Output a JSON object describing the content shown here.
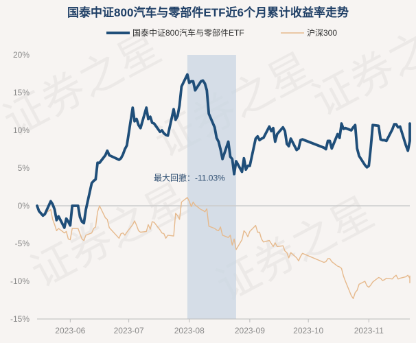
{
  "chart_data": {
    "type": "line",
    "title": "国泰中证800汽车与零部件ETF近6个月累计收益率走势",
    "watermark": "证券之星",
    "colors": {
      "etf": "#1f4e79",
      "index": "#e6b98c",
      "shade": "#c9d6e3",
      "axis": "#bbbbbb",
      "zero_line": "#cccccc"
    },
    "legend": {
      "placement": "top-center"
    },
    "grid": false,
    "x_range": [
      "2023-05-15",
      "2023-11-22"
    ],
    "x_tick_labels": [
      "2023-06",
      "2023-07",
      "2023-08",
      "2023-09",
      "2023-10",
      "2023-11"
    ],
    "x_tick_dates": [
      "2023-06-01",
      "2023-07-01",
      "2023-08-01",
      "2023-09-01",
      "2023-10-01",
      "2023-11-01"
    ],
    "ylim": [
      -15,
      20
    ],
    "y_ticks": [
      -15,
      -10,
      -5,
      0,
      5,
      10,
      15,
      20
    ],
    "y_tick_labels": [
      "-15%",
      "-10%",
      "-5%",
      "0%",
      "5%",
      "10%",
      "15%",
      "20%"
    ],
    "max_drawdown": {
      "label": "最大回撤：-11.03%",
      "start": "2023-07-31",
      "end": "2023-08-25"
    },
    "series": [
      {
        "key": "etf",
        "name": "国泰中证800汽车与零部件ETF",
        "points": [
          [
            "2023-05-15",
            0.0
          ],
          [
            "2023-05-16",
            -0.7
          ],
          [
            "2023-05-17",
            -1.0
          ],
          [
            "2023-05-18",
            -1.3
          ],
          [
            "2023-05-19",
            -1.1
          ],
          [
            "2023-05-22",
            0.6
          ],
          [
            "2023-05-23",
            0.2
          ],
          [
            "2023-05-24",
            -0.5
          ],
          [
            "2023-05-25",
            -1.9
          ],
          [
            "2023-05-26",
            -1.4
          ],
          [
            "2023-05-29",
            -2.9
          ],
          [
            "2023-05-30",
            -1.7
          ],
          [
            "2023-05-31",
            -2.1
          ],
          [
            "2023-06-01",
            -2.6
          ],
          [
            "2023-06-02",
            0.0
          ],
          [
            "2023-06-05",
            0.0
          ],
          [
            "2023-06-06",
            -1.5
          ],
          [
            "2023-06-07",
            -2.1
          ],
          [
            "2023-06-08",
            -2.3
          ],
          [
            "2023-06-09",
            -0.5
          ],
          [
            "2023-06-12",
            3.0
          ],
          [
            "2023-06-13",
            3.3
          ],
          [
            "2023-06-14",
            3.5
          ],
          [
            "2023-06-15",
            5.7
          ],
          [
            "2023-06-16",
            5.7
          ],
          [
            "2023-06-19",
            6.7
          ],
          [
            "2023-06-20",
            7.3
          ],
          [
            "2023-06-21",
            6.7
          ],
          [
            "2023-06-26",
            6.1
          ],
          [
            "2023-06-27",
            6.3
          ],
          [
            "2023-06-28",
            6.8
          ],
          [
            "2023-06-29",
            7.5
          ],
          [
            "2023-06-30",
            8.0
          ],
          [
            "2023-07-03",
            13.0
          ],
          [
            "2023-07-04",
            11.2
          ],
          [
            "2023-07-05",
            11.5
          ],
          [
            "2023-07-06",
            10.7
          ],
          [
            "2023-07-07",
            10.3
          ],
          [
            "2023-07-10",
            13.0
          ],
          [
            "2023-07-11",
            11.5
          ],
          [
            "2023-07-12",
            11.8
          ],
          [
            "2023-07-13",
            11.0
          ],
          [
            "2023-07-14",
            10.9
          ],
          [
            "2023-07-17",
            9.8
          ],
          [
            "2023-07-18",
            10.0
          ],
          [
            "2023-07-19",
            9.6
          ],
          [
            "2023-07-20",
            9.4
          ],
          [
            "2023-07-21",
            9.3
          ],
          [
            "2023-07-24",
            12.8
          ],
          [
            "2023-07-25",
            11.4
          ],
          [
            "2023-07-26",
            11.9
          ],
          [
            "2023-07-27",
            13.3
          ],
          [
            "2023-07-28",
            15.8
          ],
          [
            "2023-07-31",
            17.4
          ],
          [
            "2023-08-01",
            16.3
          ],
          [
            "2023-08-02",
            16.5
          ],
          [
            "2023-08-03",
            16.5
          ],
          [
            "2023-08-04",
            15.3
          ],
          [
            "2023-08-07",
            16.5
          ],
          [
            "2023-08-08",
            16.6
          ],
          [
            "2023-08-09",
            16.2
          ],
          [
            "2023-08-10",
            15.3
          ],
          [
            "2023-08-11",
            12.2
          ],
          [
            "2023-08-14",
            10.4
          ],
          [
            "2023-08-15",
            9.0
          ],
          [
            "2023-08-16",
            8.5
          ],
          [
            "2023-08-17",
            7.5
          ],
          [
            "2023-08-18",
            6.2
          ],
          [
            "2023-08-21",
            8.5
          ],
          [
            "2023-08-22",
            6.5
          ],
          [
            "2023-08-23",
            6.2
          ],
          [
            "2023-08-24",
            4.2
          ],
          [
            "2023-08-25",
            5.9
          ],
          [
            "2023-08-28",
            4.5
          ],
          [
            "2023-08-29",
            6.3
          ],
          [
            "2023-08-30",
            4.8
          ],
          [
            "2023-08-31",
            5.3
          ],
          [
            "2023-09-01",
            5.3
          ],
          [
            "2023-09-04",
            8.9
          ],
          [
            "2023-09-05",
            9.2
          ],
          [
            "2023-09-06",
            8.7
          ],
          [
            "2023-09-07",
            8.9
          ],
          [
            "2023-09-08",
            9.0
          ],
          [
            "2023-09-11",
            10.5
          ],
          [
            "2023-09-12",
            9.9
          ],
          [
            "2023-09-13",
            10.3
          ],
          [
            "2023-09-14",
            8.5
          ],
          [
            "2023-09-15",
            9.5
          ],
          [
            "2023-09-18",
            10.4
          ],
          [
            "2023-09-19",
            9.9
          ],
          [
            "2023-09-20",
            8.2
          ],
          [
            "2023-09-21",
            7.9
          ],
          [
            "2023-09-22",
            8.9
          ],
          [
            "2023-09-25",
            7.4
          ],
          [
            "2023-09-26",
            7.6
          ],
          [
            "2023-09-27",
            8.7
          ],
          [
            "2023-09-28",
            8.8
          ],
          [
            "2023-10-09",
            7.7
          ],
          [
            "2023-10-10",
            7.5
          ],
          [
            "2023-10-11",
            8.6
          ],
          [
            "2023-10-12",
            8.6
          ],
          [
            "2023-10-13",
            7.6
          ],
          [
            "2023-10-16",
            9.5
          ],
          [
            "2023-10-17",
            9.0
          ],
          [
            "2023-10-18",
            10.9
          ],
          [
            "2023-10-19",
            10.2
          ],
          [
            "2023-10-20",
            10.3
          ],
          [
            "2023-10-23",
            10.0
          ],
          [
            "2023-10-24",
            10.4
          ],
          [
            "2023-10-25",
            10.7
          ],
          [
            "2023-10-26",
            7.6
          ],
          [
            "2023-10-27",
            6.6
          ],
          [
            "2023-10-30",
            5.4
          ],
          [
            "2023-10-31",
            5.1
          ],
          [
            "2023-11-01",
            5.3
          ],
          [
            "2023-11-02",
            7.7
          ],
          [
            "2023-11-03",
            10.7
          ],
          [
            "2023-11-06",
            10.6
          ],
          [
            "2023-11-07",
            8.8
          ],
          [
            "2023-11-08",
            8.7
          ],
          [
            "2023-11-09",
            8.7
          ],
          [
            "2023-11-10",
            8.6
          ],
          [
            "2023-11-13",
            10.1
          ],
          [
            "2023-11-14",
            10.8
          ],
          [
            "2023-11-15",
            10.8
          ],
          [
            "2023-11-16",
            10.4
          ],
          [
            "2023-11-17",
            10.5
          ],
          [
            "2023-11-20",
            8.0
          ],
          [
            "2023-11-21",
            7.3
          ],
          [
            "2023-11-22",
            8.6
          ],
          [
            "2023-11-23",
            10.9
          ],
          [
            "2023-11-24",
            9.6
          ]
        ]
      },
      {
        "key": "index",
        "name": "沪深300",
        "points": [
          [
            "2023-05-15",
            0.0
          ],
          [
            "2023-05-16",
            -0.8
          ],
          [
            "2023-05-17",
            -1.0
          ],
          [
            "2023-05-18",
            -1.3
          ],
          [
            "2023-05-19",
            -1.0
          ],
          [
            "2023-05-22",
            -0.5
          ],
          [
            "2023-05-23",
            -1.8
          ],
          [
            "2023-05-24",
            -2.5
          ],
          [
            "2023-05-25",
            -3.3
          ],
          [
            "2023-05-26",
            -3.0
          ],
          [
            "2023-05-29",
            -3.6
          ],
          [
            "2023-05-30",
            -3.4
          ],
          [
            "2023-05-31",
            -4.4
          ],
          [
            "2023-06-01",
            -4.5
          ],
          [
            "2023-06-02",
            -3.0
          ],
          [
            "2023-06-05",
            -3.0
          ],
          [
            "2023-06-06",
            -3.7
          ],
          [
            "2023-06-07",
            -4.4
          ],
          [
            "2023-06-08",
            -4.6
          ],
          [
            "2023-06-09",
            -3.9
          ],
          [
            "2023-06-12",
            -3.6
          ],
          [
            "2023-06-13",
            -3.0
          ],
          [
            "2023-06-14",
            -2.8
          ],
          [
            "2023-06-15",
            -0.8
          ],
          [
            "2023-06-16",
            0.0
          ],
          [
            "2023-06-19",
            -1.6
          ],
          [
            "2023-06-20",
            -1.8
          ],
          [
            "2023-06-21",
            -2.9
          ],
          [
            "2023-06-26",
            -4.3
          ],
          [
            "2023-06-27",
            -3.7
          ],
          [
            "2023-06-28",
            -3.6
          ],
          [
            "2023-06-29",
            -3.9
          ],
          [
            "2023-06-30",
            -3.5
          ],
          [
            "2023-07-03",
            -2.5
          ],
          [
            "2023-07-04",
            -2.0
          ],
          [
            "2023-07-05",
            -2.6
          ],
          [
            "2023-07-06",
            -3.3
          ],
          [
            "2023-07-07",
            -3.5
          ],
          [
            "2023-07-10",
            -3.4
          ],
          [
            "2023-07-11",
            -2.5
          ],
          [
            "2023-07-12",
            -3.1
          ],
          [
            "2023-07-13",
            -2.1
          ],
          [
            "2023-07-14",
            -2.2
          ],
          [
            "2023-07-17",
            -3.2
          ],
          [
            "2023-07-18",
            -3.6
          ],
          [
            "2023-07-19",
            -3.7
          ],
          [
            "2023-07-20",
            -4.3
          ],
          [
            "2023-07-21",
            -3.9
          ],
          [
            "2023-07-24",
            -4.0
          ],
          [
            "2023-07-25",
            -1.0
          ],
          [
            "2023-07-26",
            -1.3
          ],
          [
            "2023-07-27",
            -1.8
          ],
          [
            "2023-07-28",
            0.5
          ],
          [
            "2023-07-31",
            1.1
          ],
          [
            "2023-08-01",
            0.6
          ],
          [
            "2023-08-02",
            -0.1
          ],
          [
            "2023-08-03",
            0.5
          ],
          [
            "2023-08-04",
            0.1
          ],
          [
            "2023-08-07",
            -0.5
          ],
          [
            "2023-08-08",
            -0.6
          ],
          [
            "2023-08-09",
            -0.8
          ],
          [
            "2023-08-10",
            -0.4
          ],
          [
            "2023-08-11",
            -2.7
          ],
          [
            "2023-08-14",
            -3.0
          ],
          [
            "2023-08-15",
            -3.2
          ],
          [
            "2023-08-16",
            -3.3
          ],
          [
            "2023-08-17",
            -2.8
          ],
          [
            "2023-08-18",
            -3.9
          ],
          [
            "2023-08-21",
            -4.2
          ],
          [
            "2023-08-22",
            -3.9
          ],
          [
            "2023-08-23",
            -5.2
          ],
          [
            "2023-08-24",
            -4.4
          ],
          [
            "2023-08-25",
            -5.8
          ],
          [
            "2023-08-28",
            -4.5
          ],
          [
            "2023-08-29",
            -3.3
          ],
          [
            "2023-08-30",
            -3.6
          ],
          [
            "2023-08-31",
            -4.1
          ],
          [
            "2023-09-01",
            -3.4
          ],
          [
            "2023-09-04",
            -2.6
          ],
          [
            "2023-09-05",
            -3.5
          ],
          [
            "2023-09-06",
            -3.5
          ],
          [
            "2023-09-07",
            -4.4
          ],
          [
            "2023-09-08",
            -4.8
          ],
          [
            "2023-09-11",
            -4.6
          ],
          [
            "2023-09-12",
            -5.0
          ],
          [
            "2023-09-13",
            -5.4
          ],
          [
            "2023-09-14",
            -4.9
          ],
          [
            "2023-09-15",
            -5.4
          ],
          [
            "2023-09-18",
            -5.3
          ],
          [
            "2023-09-19",
            -6.0
          ],
          [
            "2023-09-20",
            -6.2
          ],
          [
            "2023-09-21",
            -6.9
          ],
          [
            "2023-09-22",
            -6.2
          ],
          [
            "2023-09-25",
            -6.9
          ],
          [
            "2023-09-26",
            -7.3
          ],
          [
            "2023-09-27",
            -6.7
          ],
          [
            "2023-09-28",
            -6.3
          ],
          [
            "2023-10-09",
            -7.5
          ],
          [
            "2023-10-10",
            -7.4
          ],
          [
            "2023-10-11",
            -7.0
          ],
          [
            "2023-10-12",
            -7.0
          ],
          [
            "2023-10-13",
            -7.4
          ],
          [
            "2023-10-16",
            -8.0
          ],
          [
            "2023-10-17",
            -8.1
          ],
          [
            "2023-10-18",
            -8.3
          ],
          [
            "2023-10-19",
            -9.3
          ],
          [
            "2023-10-20",
            -10.0
          ],
          [
            "2023-10-23",
            -11.9
          ],
          [
            "2023-10-24",
            -12.3
          ],
          [
            "2023-10-25",
            -11.5
          ],
          [
            "2023-10-26",
            -11.2
          ],
          [
            "2023-10-27",
            -10.4
          ],
          [
            "2023-10-30",
            -10.0
          ],
          [
            "2023-10-31",
            -10.6
          ],
          [
            "2023-11-01",
            -10.8
          ],
          [
            "2023-11-02",
            -10.5
          ],
          [
            "2023-11-03",
            -10.1
          ],
          [
            "2023-11-06",
            -9.5
          ],
          [
            "2023-11-07",
            -9.6
          ],
          [
            "2023-11-08",
            -9.9
          ],
          [
            "2023-11-09",
            -9.8
          ],
          [
            "2023-11-10",
            -9.6
          ],
          [
            "2023-11-13",
            -9.7
          ],
          [
            "2023-11-14",
            -9.4
          ],
          [
            "2023-11-15",
            -9.2
          ],
          [
            "2023-11-16",
            -9.7
          ],
          [
            "2023-11-17",
            -9.6
          ],
          [
            "2023-11-20",
            -9.4
          ],
          [
            "2023-11-21",
            -9.2
          ],
          [
            "2023-11-22",
            -9.6
          ],
          [
            "2023-11-23",
            -9.3
          ],
          [
            "2023-11-24",
            -10.2
          ]
        ]
      }
    ]
  }
}
